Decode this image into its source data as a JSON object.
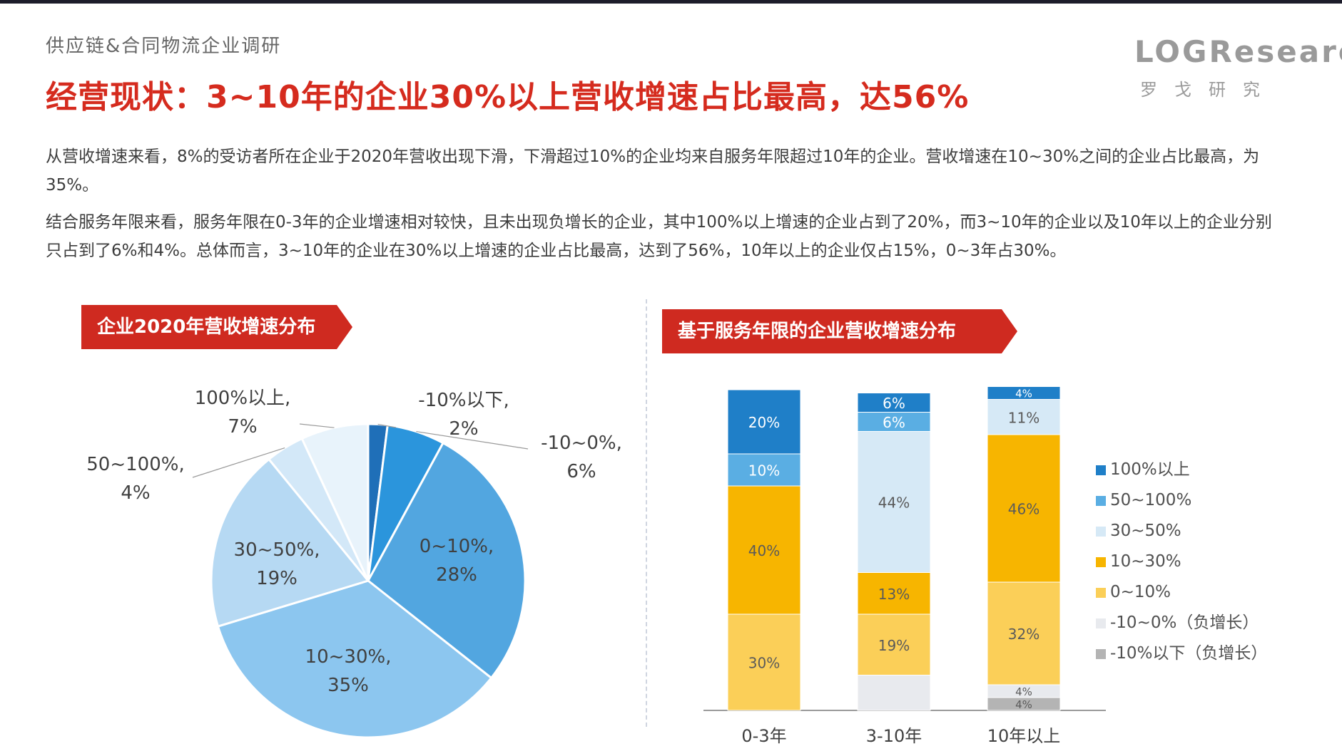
{
  "header": {
    "supertitle": "供应链&合同物流企业调研",
    "title": "经营现状：3~10年的企业30%以上营收增速占比最高，达56%",
    "logo_text": "LOGResearch",
    "logo_sub": "罗戈研究"
  },
  "paragraphs": [
    "从营收增速来看，8%的受访者所在企业于2020年营收出现下滑，下滑超过10%的企业均来自服务年限超过10年的企业。营收增速在10~30%之间的企业占比最高，为35%。",
    "结合服务年限来看，服务年限在0-3年的企业增速相对较快，且未出现负增长的企业，其中100%以上增速的企业占到了20%，而3~10年的企业以及10年以上的企业分别只占到了6%和4%。总体而言，3~10年的企业在30%以上增速的企业占比最高，达到了56%，10年以上的企业仅占15%，0~3年占30%。"
  ],
  "colors": {
    "accent": "#d52b1e",
    "banner": "#cf2a20",
    "s100": "#1f7fc8",
    "s50": "#5aaee3",
    "s30": "#d6e9f6",
    "s10": "#f7b500",
    "s0": "#fbcf58",
    "sneg": "#e8eaee",
    "sneg10": "#b4b4b4"
  },
  "chart_data": [
    {
      "type": "pie",
      "title": "企业2020年营收增速分布",
      "slices": [
        {
          "label": "-10%以下",
          "value": 2,
          "color": "#1f6fb8",
          "text": "-10%以下, 2%"
        },
        {
          "label": "-10~0%",
          "value": 6,
          "color": "#2b95dc",
          "text": "-10~0%, 6%"
        },
        {
          "label": "0~10%",
          "value": 28,
          "color": "#52a6e0",
          "text": "0~10%, 28%"
        },
        {
          "label": "10~30%",
          "value": 35,
          "color": "#8cc6ef",
          "text": "10~30%, 35%"
        },
        {
          "label": "30~50%",
          "value": 19,
          "color": "#b6d9f3",
          "text": "30~50%, 19%"
        },
        {
          "label": "50~100%",
          "value": 4,
          "color": "#d3e8f8",
          "text": "50~100%, 4%"
        },
        {
          "label": "100%以上",
          "value": 7,
          "color": "#e8f3fb",
          "text": "100%以上, 7%"
        }
      ]
    },
    {
      "type": "bar",
      "stacked": true,
      "title": "基于服务年限的企业营收增速分布",
      "categories": [
        "0-3年",
        "3-10年",
        "10年以上"
      ],
      "series": [
        {
          "name": "-10%以下（负增长）",
          "color": "#b4b4b4",
          "values": [
            0,
            0,
            4
          ]
        },
        {
          "name": "-10~0%（负增长）",
          "color": "#e8eaee",
          "values": [
            0,
            11,
            4
          ]
        },
        {
          "name": "0~10%",
          "color": "#fbcf58",
          "values": [
            30,
            19,
            32
          ]
        },
        {
          "name": "10~30%",
          "color": "#f7b500",
          "values": [
            40,
            13,
            46
          ]
        },
        {
          "name": "30~50%",
          "color": "#d6e9f6",
          "values": [
            0,
            44,
            11
          ]
        },
        {
          "name": "50~100%",
          "color": "#5aaee3",
          "values": [
            10,
            6,
            0
          ]
        },
        {
          "name": "100%以上",
          "color": "#1f7fc8",
          "values": [
            20,
            6,
            4
          ]
        }
      ],
      "labels": [
        [
          null,
          null,
          "4%"
        ],
        [
          null,
          null,
          "4%"
        ],
        [
          "30%",
          "19%",
          "32%"
        ],
        [
          "40%",
          "13%",
          "46%"
        ],
        [
          null,
          "44%",
          "11%"
        ],
        [
          "10%",
          "6%",
          null
        ],
        [
          "20%",
          "6%",
          "4%"
        ]
      ],
      "legend": {
        "position": "right",
        "items": [
          "100%以上",
          "50~100%",
          "30~50%",
          "10~30%",
          "0~10%",
          "-10~0%（负增长）",
          "-10%以下（负增长）"
        ]
      }
    }
  ]
}
